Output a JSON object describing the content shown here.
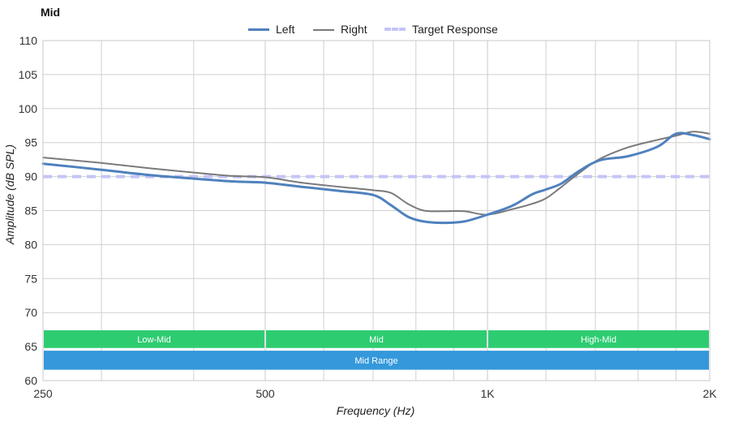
{
  "chart_data": {
    "type": "line",
    "title": "Mid",
    "xlabel": "Frequency (Hz)",
    "ylabel": "Amplitude (dB SPL)",
    "xscale": "log",
    "xlim": [
      250,
      2000
    ],
    "ylim": [
      60,
      110
    ],
    "x_ticks": [
      {
        "value": 250,
        "label": "250"
      },
      {
        "value": 500,
        "label": "500"
      },
      {
        "value": 1000,
        "label": "1K"
      },
      {
        "value": 2000,
        "label": "2K"
      }
    ],
    "x_minor_gridlines": [
      300,
      400,
      600,
      700,
      800,
      900,
      1200,
      1400,
      1600,
      1800
    ],
    "y_ticks": [
      60,
      65,
      70,
      75,
      80,
      85,
      90,
      95,
      100,
      105,
      110
    ],
    "grid": true,
    "legend_position": "top-center",
    "series": [
      {
        "name": "Left",
        "color": "#4f81bd",
        "style": "solid-thick",
        "points": [
          [
            250,
            91.9
          ],
          [
            300,
            91.0
          ],
          [
            350,
            90.2
          ],
          [
            400,
            89.7
          ],
          [
            450,
            89.3
          ],
          [
            500,
            89.1
          ],
          [
            560,
            88.5
          ],
          [
            630,
            87.9
          ],
          [
            700,
            87.3
          ],
          [
            740,
            85.8
          ],
          [
            780,
            84.1
          ],
          [
            820,
            83.4
          ],
          [
            870,
            83.2
          ],
          [
            930,
            83.4
          ],
          [
            1000,
            84.4
          ],
          [
            1080,
            85.7
          ],
          [
            1150,
            87.4
          ],
          [
            1200,
            88.1
          ],
          [
            1260,
            89.0
          ],
          [
            1330,
            90.8
          ],
          [
            1420,
            92.4
          ],
          [
            1550,
            93.0
          ],
          [
            1700,
            94.4
          ],
          [
            1800,
            96.3
          ],
          [
            1900,
            96.1
          ],
          [
            2000,
            95.5
          ]
        ]
      },
      {
        "name": "Right",
        "color": "#7a7a7a",
        "style": "solid-thin",
        "points": [
          [
            250,
            92.8
          ],
          [
            300,
            92.0
          ],
          [
            350,
            91.2
          ],
          [
            400,
            90.6
          ],
          [
            450,
            90.1
          ],
          [
            500,
            89.9
          ],
          [
            560,
            89.1
          ],
          [
            630,
            88.5
          ],
          [
            700,
            88.0
          ],
          [
            740,
            87.6
          ],
          [
            780,
            86.0
          ],
          [
            820,
            85.0
          ],
          [
            870,
            84.9
          ],
          [
            930,
            84.9
          ],
          [
            1000,
            84.4
          ],
          [
            1080,
            85.2
          ],
          [
            1150,
            86.0
          ],
          [
            1200,
            86.8
          ],
          [
            1260,
            88.5
          ],
          [
            1330,
            90.5
          ],
          [
            1420,
            92.6
          ],
          [
            1550,
            94.3
          ],
          [
            1700,
            95.4
          ],
          [
            1800,
            96.0
          ],
          [
            1900,
            96.6
          ],
          [
            2000,
            96.3
          ]
        ]
      },
      {
        "name": "Target Response",
        "color": "#c4c4f8",
        "style": "dashed",
        "points": [
          [
            250,
            90
          ],
          [
            2000,
            90
          ]
        ]
      }
    ],
    "bands": [
      {
        "label": "Low-Mid",
        "from": 250,
        "to": 500,
        "y_top": 67.4,
        "y_bottom": 64.8,
        "color": "#2ecc71"
      },
      {
        "label": "Mid",
        "from": 500,
        "to": 1000,
        "y_top": 67.4,
        "y_bottom": 64.8,
        "color": "#2ecc71"
      },
      {
        "label": "High-Mid",
        "from": 1000,
        "to": 2000,
        "y_top": 67.4,
        "y_bottom": 64.8,
        "color": "#2ecc71"
      },
      {
        "label": "Mid Range",
        "from": 250,
        "to": 2000,
        "y_top": 64.4,
        "y_bottom": 61.6,
        "color": "#3498db"
      }
    ]
  }
}
